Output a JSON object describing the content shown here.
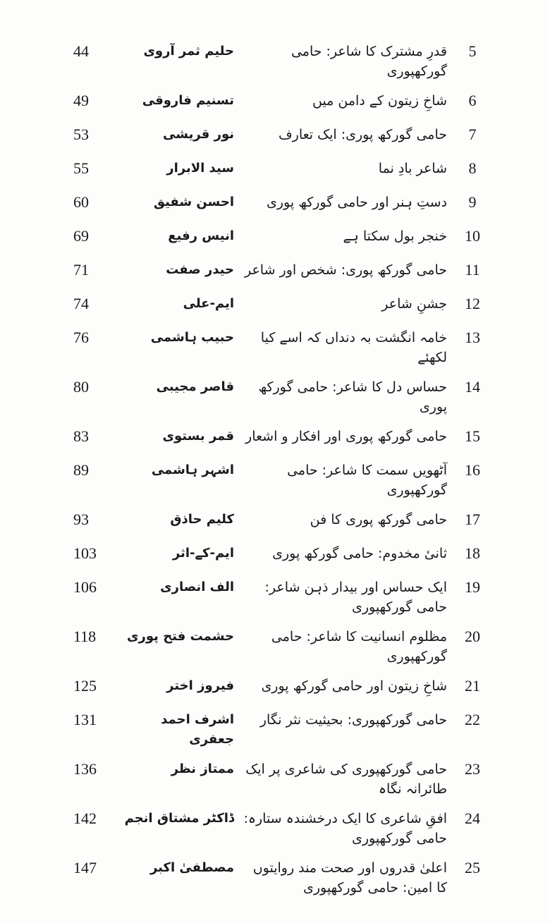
{
  "entries": [
    {
      "number": "5",
      "title": "قدرِ مشترک کا شاعر: حامی گورکھپوری",
      "author": "حلیم ثمر آروی",
      "page": "44"
    },
    {
      "number": "6",
      "title": "شاخِ زیتون کے دامن میں",
      "author": "تسنیم فاروقی",
      "page": "49"
    },
    {
      "number": "7",
      "title": "حامی گورکھ پوری: ایک تعارف",
      "author": "نور قریشی",
      "page": "53"
    },
    {
      "number": "8",
      "title": "شاعر بادِ نما",
      "author": "سید الابرار",
      "page": "55"
    },
    {
      "number": "9",
      "title": "دستِ ہنر اور حامی گورکھ پوری",
      "author": "احسن شفیق",
      "page": "60"
    },
    {
      "number": "10",
      "title": "خنجر بول سکتا ہے",
      "author": "انیس رفیع",
      "page": "69"
    },
    {
      "number": "11",
      "title": "حامی گورکھ پوری: شخص اور شاعر",
      "author": "حیدر صفت",
      "page": "71"
    },
    {
      "number": "12",
      "title": "جشنِ شاعر",
      "author": "ایم-علی",
      "page": "74"
    },
    {
      "number": "13",
      "title": "خامہ انگشت بہ دنداں کہ اسے کیا لکھئے",
      "author": "حبیب ہاشمی",
      "page": "76"
    },
    {
      "number": "14",
      "title": "حساس دل کا شاعر: حامی گورکھ پوری",
      "author": "قاصر مجیبی",
      "page": "80"
    },
    {
      "number": "15",
      "title": "حامی گورکھ پوری اور افکار و اشعار",
      "author": "قمر بستوی",
      "page": "83"
    },
    {
      "number": "16",
      "title": "آٹھویں سمت کا شاعر: حامی گورکھپوری",
      "author": "اشہر ہاشمی",
      "page": "89"
    },
    {
      "number": "17",
      "title": "حامی گورکھ پوری کا فن",
      "author": "کلیم حاذق",
      "page": "93"
    },
    {
      "number": "18",
      "title": "ثانیٔ مخدوم: حامی گورکھ پوری",
      "author": "ایم-کے-اثر",
      "page": "103"
    },
    {
      "number": "19",
      "title": "ایک حساس اور بیدار ذہن شاعر: حامی گورکھپوری",
      "author": "الف انصاری",
      "page": "106"
    },
    {
      "number": "20",
      "title": "مظلوم انسانیت کا شاعر: حامی گورکھپوری",
      "author": "حشمت فتح پوری",
      "page": "118"
    },
    {
      "number": "21",
      "title": "شاخِ زیتون اور حامی گورکھ پوری",
      "author": "فیروز اختر",
      "page": "125"
    },
    {
      "number": "22",
      "title": "حامی گورکھپوری: بحیثیت نثر نگار",
      "author": "اشرف احمد جعفری",
      "page": "131"
    },
    {
      "number": "23",
      "title": "حامی گورکھپوری کی شاعری پر ایک طائرانہ نگاہ",
      "author": "ممتاز نظر",
      "page": "136"
    },
    {
      "number": "24",
      "title": "افقِ شاعری کا ایک درخشندہ ستارہ: حامی گورکھپوری",
      "author": "ڈاکٹر مشتاق انجم",
      "page": "142"
    },
    {
      "number": "25",
      "title": "اعلیٰ قدروں اور صحت مند روایتوں کا امین: حامی گورکھپوری",
      "author": "مصطفیٰ اکبر",
      "page": "147"
    }
  ]
}
